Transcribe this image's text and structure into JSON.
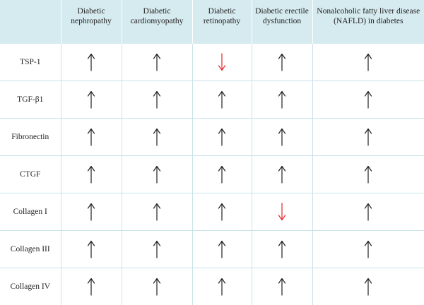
{
  "colors": {
    "header_bg": "#d5ebef",
    "grid": "#c7e3e8",
    "up_arrow": "#231f20",
    "down_arrow": "#e5262b"
  },
  "headers": [
    "",
    "Diabetic nephropathy",
    "Diabetic cardiomyopathy",
    "Diabetic retinopathy",
    "Diabetic erectile dysfunction",
    "Nonalcoholic fatty liver disease (NAFLD) in diabetes"
  ],
  "rows": [
    {
      "label": "TSP-1",
      "cells": [
        "up-arrow",
        "up-arrow",
        "down-arrow",
        "up-arrow",
        "up-arrow"
      ]
    },
    {
      "label": "TGF-β1",
      "cells": [
        "up-arrow",
        "up-arrow",
        "up-arrow",
        "up-arrow",
        "up-arrow"
      ]
    },
    {
      "label": "Fibronectin",
      "cells": [
        "up-arrow",
        "up-arrow",
        "up-arrow",
        "up-arrow",
        "up-arrow"
      ]
    },
    {
      "label": "CTGF",
      "cells": [
        "up-arrow",
        "up-arrow",
        "up-arrow",
        "up-arrow",
        "up-arrow"
      ]
    },
    {
      "label": "Collagen I",
      "cells": [
        "up-arrow",
        "up-arrow",
        "up-arrow",
        "down-arrow",
        "up-arrow"
      ]
    },
    {
      "label": "Collagen III",
      "cells": [
        "up-arrow",
        "up-arrow",
        "up-arrow",
        "up-arrow",
        "up-arrow"
      ]
    },
    {
      "label": "Collagen IV",
      "cells": [
        "up-arrow",
        "up-arrow",
        "up-arrow",
        "up-arrow",
        "up-arrow"
      ]
    }
  ]
}
